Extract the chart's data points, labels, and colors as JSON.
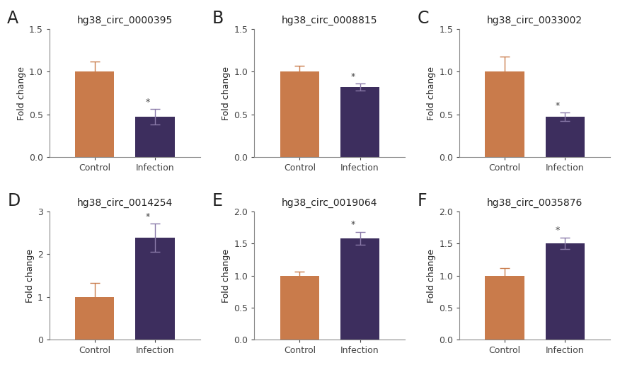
{
  "panels": [
    {
      "label": "A",
      "title": "hg38_circ_0000395",
      "control_val": 1.0,
      "control_err": 0.12,
      "infection_val": 0.47,
      "infection_err": 0.09,
      "ylim": [
        0,
        1.5
      ],
      "yticks": [
        0.0,
        0.5,
        1.0,
        1.5
      ],
      "yticklabels": [
        "0.0",
        "0.5",
        "1.0",
        "1.5"
      ],
      "direction": "down"
    },
    {
      "label": "B",
      "title": "hg38_circ_0008815",
      "control_val": 1.0,
      "control_err": 0.065,
      "infection_val": 0.82,
      "infection_err": 0.04,
      "ylim": [
        0,
        1.5
      ],
      "yticks": [
        0.0,
        0.5,
        1.0,
        1.5
      ],
      "yticklabels": [
        "0.0",
        "0.5",
        "1.0",
        "1.5"
      ],
      "direction": "down"
    },
    {
      "label": "C",
      "title": "hg38_circ_0033002",
      "control_val": 1.0,
      "control_err": 0.18,
      "infection_val": 0.47,
      "infection_err": 0.05,
      "ylim": [
        0,
        1.5
      ],
      "yticks": [
        0.0,
        0.5,
        1.0,
        1.5
      ],
      "yticklabels": [
        "0.0",
        "0.5",
        "1.0",
        "1.5"
      ],
      "direction": "down"
    },
    {
      "label": "D",
      "title": "hg38_circ_0014254",
      "control_val": 1.0,
      "control_err": 0.32,
      "infection_val": 2.38,
      "infection_err": 0.33,
      "ylim": [
        0,
        3
      ],
      "yticks": [
        0,
        1,
        2,
        3
      ],
      "yticklabels": [
        "0",
        "1",
        "2",
        "3"
      ],
      "direction": "up"
    },
    {
      "label": "E",
      "title": "hg38_circ_0019064",
      "control_val": 1.0,
      "control_err": 0.065,
      "infection_val": 1.58,
      "infection_err": 0.1,
      "ylim": [
        0,
        2.0
      ],
      "yticks": [
        0.0,
        0.5,
        1.0,
        1.5,
        2.0
      ],
      "yticklabels": [
        "0.0",
        "0.5",
        "1.0",
        "1.5",
        "2.0"
      ],
      "direction": "up"
    },
    {
      "label": "F",
      "title": "hg38_circ_0035876",
      "control_val": 1.0,
      "control_err": 0.12,
      "infection_val": 1.5,
      "infection_err": 0.09,
      "ylim": [
        0,
        2.0
      ],
      "yticks": [
        0.0,
        0.5,
        1.0,
        1.5,
        2.0
      ],
      "yticklabels": [
        "0.0",
        "0.5",
        "1.0",
        "1.5",
        "2.0"
      ],
      "direction": "up"
    }
  ],
  "control_color": "#C97B4B",
  "infection_color": "#3D2E5E",
  "error_color_control": "#C97B4B",
  "error_color_infection": "#8B7BAA",
  "bar_width": 0.65,
  "ylabel": "Fold change",
  "xlabel_control": "Control",
  "xlabel_infection": "Infection",
  "title_fontsize": 10,
  "tick_fontsize": 9,
  "ylabel_fontsize": 9,
  "panel_label_fontsize": 17,
  "star_fontsize": 9,
  "figure_bg": "#FFFFFF"
}
